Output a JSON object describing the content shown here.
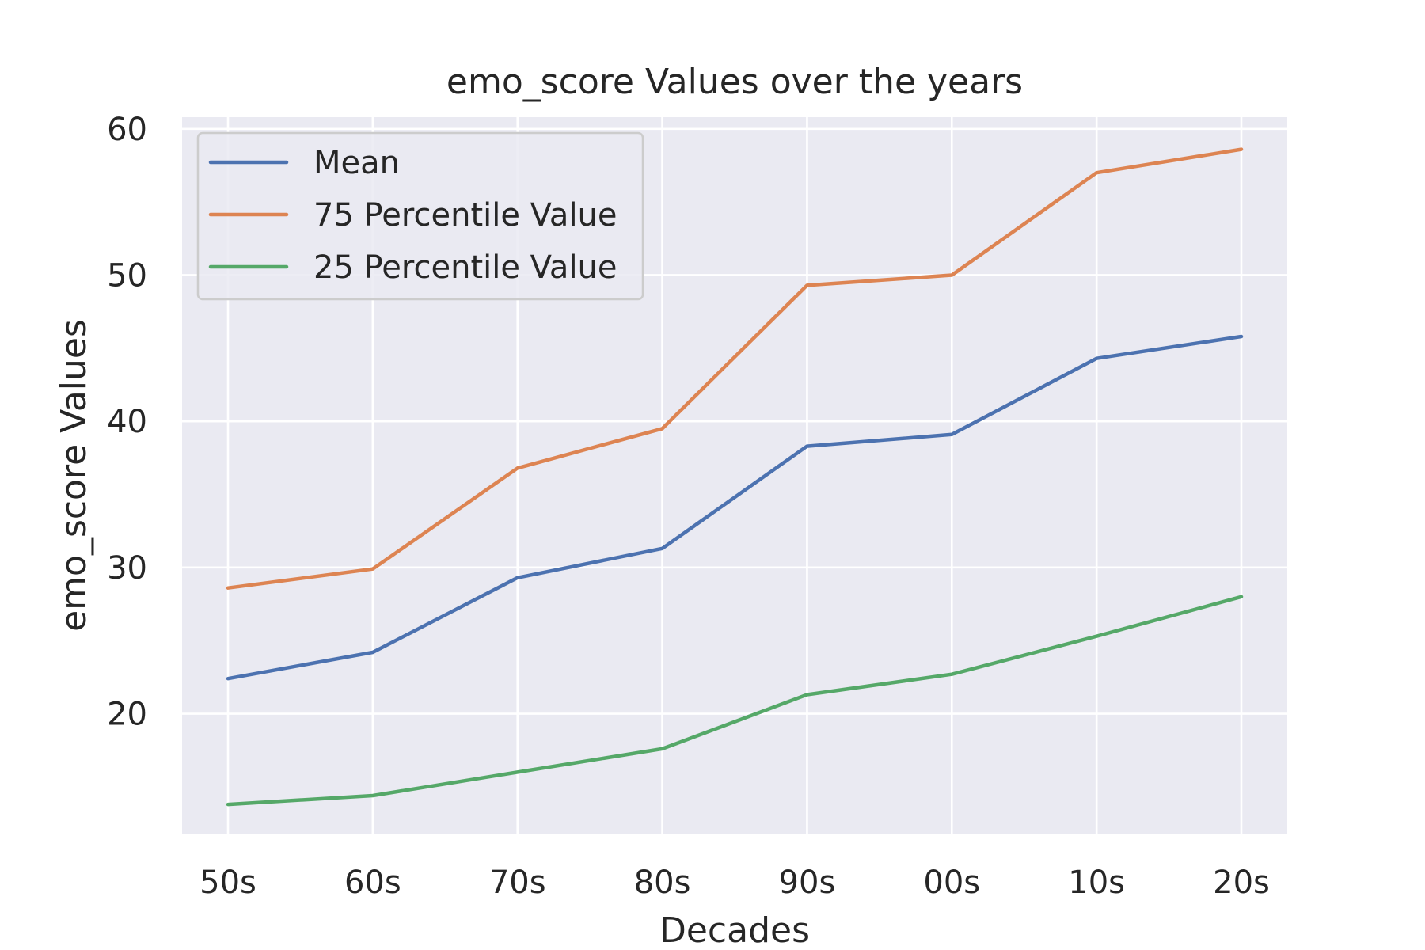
{
  "chart_data": {
    "type": "line",
    "title": "emo_score Values over the years",
    "xlabel": "Decades",
    "ylabel": "emo_score Values",
    "categories": [
      "50s",
      "60s",
      "70s",
      "80s",
      "90s",
      "00s",
      "10s",
      "20s"
    ],
    "y_ticks": [
      20,
      30,
      40,
      50,
      60
    ],
    "ylim": [
      11.8,
      60.8
    ],
    "grid": true,
    "legend_position": "upper-left",
    "colors": {
      "background": "#eaeaf2",
      "grid": "#ffffff",
      "text": "#262626"
    },
    "series": [
      {
        "name": "Mean",
        "color": "#4c72b0",
        "values": [
          22.4,
          24.2,
          29.3,
          31.3,
          38.3,
          39.1,
          44.3,
          45.8
        ]
      },
      {
        "name": "75 Percentile Value",
        "color": "#dd8452",
        "values": [
          28.6,
          29.9,
          36.8,
          39.5,
          49.3,
          50.0,
          57.0,
          58.6
        ]
      },
      {
        "name": "25 Percentile Value",
        "color": "#55a868",
        "values": [
          13.8,
          14.4,
          16.0,
          17.6,
          21.3,
          22.7,
          25.3,
          28.0
        ]
      }
    ]
  }
}
